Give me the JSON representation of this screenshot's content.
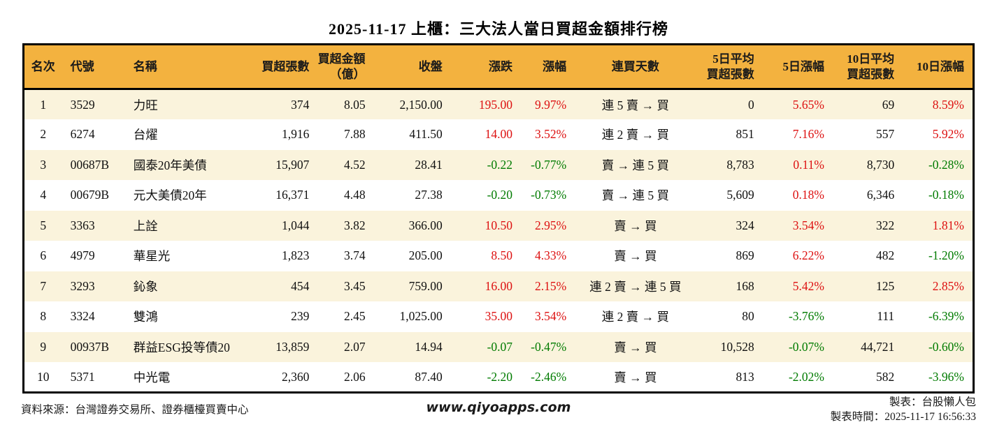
{
  "chart_data": {
    "type": "table",
    "title": "2025-11-17 上櫃：三大法人當日買超金額排行榜",
    "columns": [
      {
        "key": "rank",
        "label": "名次",
        "align": "center",
        "signed": false
      },
      {
        "key": "code",
        "label": "代號",
        "align": "left",
        "signed": false
      },
      {
        "key": "name",
        "label": "名稱",
        "align": "left",
        "signed": false
      },
      {
        "key": "net_buy_volume",
        "label": "買超張數",
        "align": "right",
        "signed": false
      },
      {
        "key": "net_buy_amount",
        "label": "買超金額\n（億）",
        "align": "right",
        "signed": false
      },
      {
        "key": "close",
        "label": "收盤",
        "align": "right",
        "signed": false
      },
      {
        "key": "change",
        "label": "漲跌",
        "align": "right",
        "signed": true
      },
      {
        "key": "change_pct",
        "label": "漲幅",
        "align": "right",
        "signed": true
      },
      {
        "key": "streak",
        "label": "連買天數",
        "align": "center",
        "signed": false
      },
      {
        "key": "avg5_volume",
        "label": "5日平均\n買超張數",
        "align": "right",
        "signed": false
      },
      {
        "key": "pct_5d",
        "label": "5日漲幅",
        "align": "right",
        "signed": true
      },
      {
        "key": "avg10_volume",
        "label": "10日平均\n買超張數",
        "align": "right",
        "signed": false
      },
      {
        "key": "pct_10d",
        "label": "10日漲幅",
        "align": "right",
        "signed": true
      }
    ],
    "rows": [
      [
        "1",
        "3529",
        "力旺",
        "374",
        "8.05",
        "2,150.00",
        "195.00",
        "9.97%",
        "連 5 賣 → 買",
        "0",
        "5.65%",
        "69",
        "8.59%"
      ],
      [
        "2",
        "6274",
        "台燿",
        "1,916",
        "7.88",
        "411.50",
        "14.00",
        "3.52%",
        "連 2 賣 → 買",
        "851",
        "7.16%",
        "557",
        "5.92%"
      ],
      [
        "3",
        "00687B",
        "國泰20年美債",
        "15,907",
        "4.52",
        "28.41",
        "-0.22",
        "-0.77%",
        "賣 → 連 5 買",
        "8,783",
        "0.11%",
        "8,730",
        "-0.28%"
      ],
      [
        "4",
        "00679B",
        "元大美債20年",
        "16,371",
        "4.48",
        "27.38",
        "-0.20",
        "-0.73%",
        "賣 → 連 5 買",
        "5,609",
        "0.18%",
        "6,346",
        "-0.18%"
      ],
      [
        "5",
        "3363",
        "上詮",
        "1,044",
        "3.82",
        "366.00",
        "10.50",
        "2.95%",
        "賣 → 買",
        "324",
        "3.54%",
        "322",
        "1.81%"
      ],
      [
        "6",
        "4979",
        "華星光",
        "1,823",
        "3.74",
        "205.00",
        "8.50",
        "4.33%",
        "賣 → 買",
        "869",
        "6.22%",
        "482",
        "-1.20%"
      ],
      [
        "7",
        "3293",
        "鈊象",
        "454",
        "3.45",
        "759.00",
        "16.00",
        "2.15%",
        "連 2 賣 → 連 5 買",
        "168",
        "5.42%",
        "125",
        "2.85%"
      ],
      [
        "8",
        "3324",
        "雙鴻",
        "239",
        "2.45",
        "1,025.00",
        "35.00",
        "3.54%",
        "連 2 賣 → 買",
        "80",
        "-3.76%",
        "111",
        "-6.39%"
      ],
      [
        "9",
        "00937B",
        "群益ESG投等債20",
        "13,859",
        "2.07",
        "14.94",
        "-0.07",
        "-0.47%",
        "賣 → 買",
        "10,528",
        "-0.07%",
        "44,721",
        "-0.60%"
      ],
      [
        "10",
        "5371",
        "中光電",
        "2,360",
        "2.06",
        "87.40",
        "-2.20",
        "-2.46%",
        "賣 → 買",
        "813",
        "-2.02%",
        "582",
        "-3.96%"
      ]
    ]
  },
  "footer": {
    "source": "資料來源：台灣證券交易所、證券櫃檯買賣中心",
    "website": "www.qiyoapps.com",
    "author": "製表：台股懶人包",
    "generated_at": "製表時間：2025-11-17 16:56:33"
  },
  "colors": {
    "up_red": "#dd1111",
    "down_green": "#007b00",
    "header_bg": "#f3b23f",
    "row_alt_bg": "#faf3dc"
  }
}
